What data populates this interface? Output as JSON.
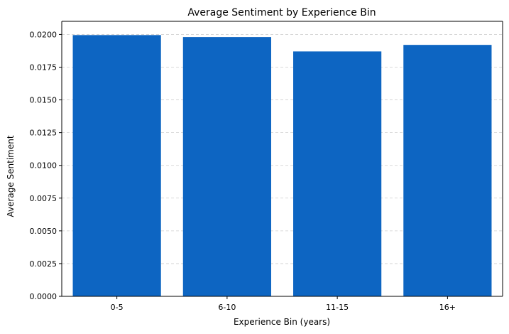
{
  "chart_data": {
    "type": "bar",
    "title": "Average Sentiment by Experience Bin",
    "xlabel": "Experience Bin (years)",
    "ylabel": "Average Sentiment",
    "categories": [
      "0-5",
      "6-10",
      "11-15",
      "16+"
    ],
    "values": [
      0.01995,
      0.0198,
      0.0187,
      0.0192
    ],
    "ylim": [
      0,
      0.021
    ],
    "yticks": [
      0.0,
      0.0025,
      0.005,
      0.0075,
      0.01,
      0.0125,
      0.015,
      0.0175,
      0.02
    ],
    "ytick_labels": [
      "0.0000",
      "0.0025",
      "0.0050",
      "0.0075",
      "0.0100",
      "0.0125",
      "0.0150",
      "0.0175",
      "0.0200"
    ],
    "grid": "y-dashed",
    "bar_color": "#0d65c2"
  }
}
